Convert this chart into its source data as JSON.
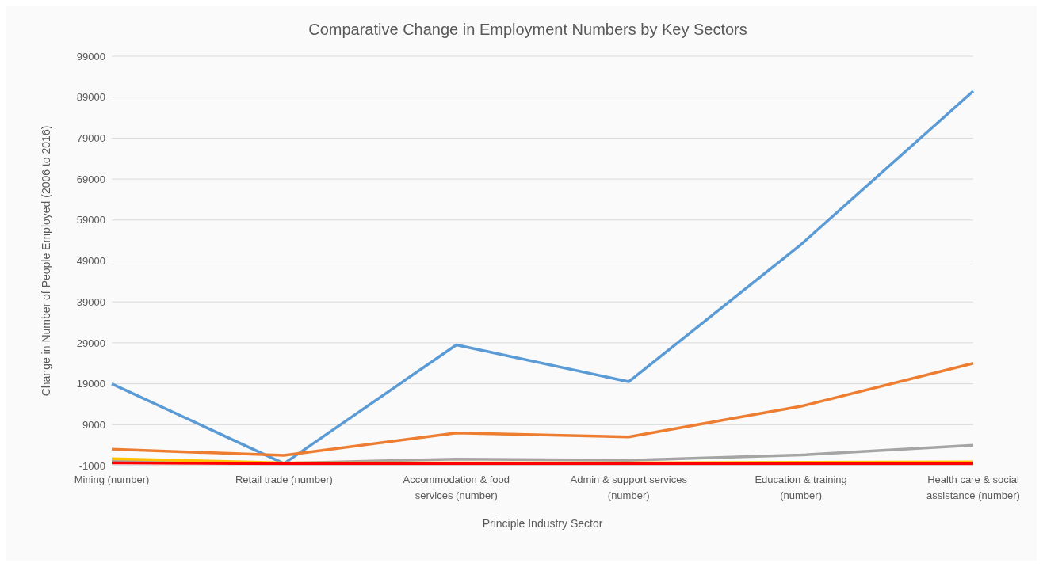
{
  "chart_data": {
    "type": "line",
    "title": "Comparative Change in Employment Numbers by Key Sectors",
    "xlabel": "Principle Industry Sector",
    "ylabel": "Change in Number of People Employed (2006 to 2016)",
    "categories": [
      "Mining (number)",
      "Retail trade (number)",
      "Accommodation & food services (number)",
      "Admin & support services (number)",
      "Education & training (number)",
      "Health care & social assistance (number)"
    ],
    "series": [
      {
        "color": "#5b9bd5",
        "values": [
          19000,
          -500,
          28500,
          19500,
          53000,
          90500
        ]
      },
      {
        "color": "#ed7d31",
        "values": [
          3000,
          1500,
          7000,
          6000,
          13500,
          24000
        ]
      },
      {
        "color": "#a5a5a5",
        "values": [
          300,
          -400,
          600,
          300,
          1600,
          4000
        ]
      },
      {
        "color": "#ffc000",
        "values": [
          700,
          -300,
          -300,
          -300,
          -200,
          -100
        ]
      },
      {
        "color": "#ff0000",
        "values": [
          -300,
          -500,
          -500,
          -500,
          -500,
          -500
        ]
      }
    ],
    "ylim": [
      -1000,
      99000
    ],
    "yticks": [
      -1000,
      9000,
      19000,
      29000,
      39000,
      49000,
      59000,
      69000,
      79000,
      89000,
      99000
    ],
    "grid": "y",
    "marker": "none",
    "line_style": "solid",
    "legend": false
  }
}
